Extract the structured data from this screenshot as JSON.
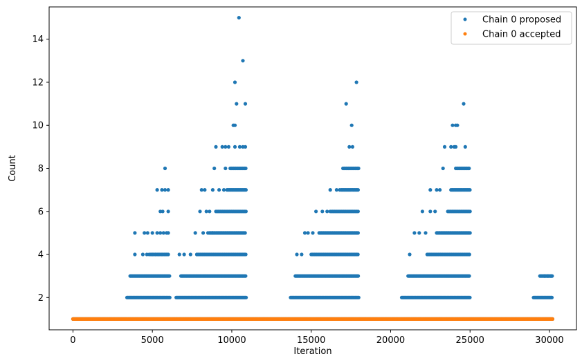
{
  "chart_data": {
    "type": "scatter",
    "xlabel": "Iteration",
    "ylabel": "Count",
    "xlim": [
      -1500,
      31700
    ],
    "ylim": [
      0.5,
      15.5
    ],
    "xticks": [
      0,
      5000,
      10000,
      15000,
      20000,
      25000,
      30000
    ],
    "yticks": [
      2,
      4,
      6,
      8,
      10,
      12,
      14
    ],
    "grid": false,
    "legend_position": "top-right",
    "series": [
      {
        "name": "Chain 0 proposed",
        "color": "#1f77b4",
        "baseline": {
          "y": 1,
          "x_from": 0,
          "x_to": 30200
        },
        "bands": [
          {
            "y": 2,
            "ranges": [
              [
                3400,
                6100
              ],
              [
                6500,
                10900
              ],
              [
                13700,
                18000
              ],
              [
                20700,
                25000
              ],
              [
                29000,
                30200
              ]
            ]
          },
          {
            "y": 3,
            "ranges": [
              [
                3600,
                6100
              ],
              [
                6800,
                10900
              ],
              [
                14000,
                18000
              ],
              [
                21100,
                25000
              ],
              [
                29400,
                30200
              ]
            ]
          }
        ],
        "points": [
          {
            "x": 3900,
            "y": 4
          },
          {
            "x": 4400,
            "y": 4
          },
          {
            "x": 4650,
            "y": 4
          },
          {
            "x": 4800,
            "y": 4
          },
          {
            "x": 5000,
            "y": 4
          },
          {
            "x": 5200,
            "y": 4
          },
          {
            "x": 5400,
            "y": 4
          },
          {
            "x": 5600,
            "y": 4
          },
          {
            "x": 5800,
            "y": 4
          },
          {
            "x": 6000,
            "y": 4
          },
          {
            "x": 3900,
            "y": 5
          },
          {
            "x": 4500,
            "y": 5
          },
          {
            "x": 4700,
            "y": 5
          },
          {
            "x": 5000,
            "y": 5
          },
          {
            "x": 5300,
            "y": 5
          },
          {
            "x": 5500,
            "y": 5
          },
          {
            "x": 5700,
            "y": 5
          },
          {
            "x": 5900,
            "y": 5
          },
          {
            "x": 6000,
            "y": 5
          },
          {
            "x": 5500,
            "y": 6
          },
          {
            "x": 5650,
            "y": 6
          },
          {
            "x": 6000,
            "y": 6
          },
          {
            "x": 5300,
            "y": 7
          },
          {
            "x": 5600,
            "y": 7
          },
          {
            "x": 5800,
            "y": 7
          },
          {
            "x": 6000,
            "y": 7
          },
          {
            "x": 5800,
            "y": 8
          },
          {
            "x": 6700,
            "y": 4
          },
          {
            "x": 7000,
            "y": 4
          },
          {
            "x": 7400,
            "y": 4
          },
          {
            "x": 7800,
            "y": 4
          },
          {
            "x": 7700,
            "y": 5
          },
          {
            "x": 8200,
            "y": 5
          },
          {
            "x": 8500,
            "y": 5
          },
          {
            "x": 8800,
            "y": 5
          },
          {
            "x": 8000,
            "y": 6
          },
          {
            "x": 8400,
            "y": 6
          },
          {
            "x": 8600,
            "y": 6
          },
          {
            "x": 8100,
            "y": 7
          },
          {
            "x": 8300,
            "y": 7
          },
          {
            "x": 8800,
            "y": 7
          },
          {
            "x": 9200,
            "y": 7
          },
          {
            "x": 9500,
            "y": 7
          },
          {
            "x": 8900,
            "y": 8
          },
          {
            "x": 9600,
            "y": 8
          },
          {
            "x": 9000,
            "y": 9
          },
          {
            "x": 9400,
            "y": 9
          },
          {
            "x": 9600,
            "y": 9
          },
          {
            "x": 9800,
            "y": 9
          },
          {
            "x": 10200,
            "y": 9
          },
          {
            "x": 10500,
            "y": 9
          },
          {
            "x": 10700,
            "y": 9
          },
          {
            "x": 10850,
            "y": 9
          },
          {
            "x": 10100,
            "y": 10
          },
          {
            "x": 10200,
            "y": 10
          },
          {
            "x": 10300,
            "y": 11
          },
          {
            "x": 10850,
            "y": 11
          },
          {
            "x": 10200,
            "y": 12
          },
          {
            "x": 10700,
            "y": 13
          },
          {
            "x": 10450,
            "y": 15
          },
          {
            "x": 14100,
            "y": 4
          },
          {
            "x": 14400,
            "y": 4
          },
          {
            "x": 14600,
            "y": 5
          },
          {
            "x": 14800,
            "y": 5
          },
          {
            "x": 15100,
            "y": 5
          },
          {
            "x": 15300,
            "y": 6
          },
          {
            "x": 15700,
            "y": 6
          },
          {
            "x": 16000,
            "y": 6
          },
          {
            "x": 16200,
            "y": 7
          },
          {
            "x": 16600,
            "y": 7
          },
          {
            "x": 16800,
            "y": 7
          },
          {
            "x": 17200,
            "y": 11
          },
          {
            "x": 17400,
            "y": 9
          },
          {
            "x": 17600,
            "y": 9
          },
          {
            "x": 17550,
            "y": 10
          },
          {
            "x": 17850,
            "y": 12
          },
          {
            "x": 21200,
            "y": 4
          },
          {
            "x": 21500,
            "y": 5
          },
          {
            "x": 21800,
            "y": 5
          },
          {
            "x": 22200,
            "y": 5
          },
          {
            "x": 22000,
            "y": 6
          },
          {
            "x": 22500,
            "y": 6
          },
          {
            "x": 22800,
            "y": 6
          },
          {
            "x": 22500,
            "y": 7
          },
          {
            "x": 22900,
            "y": 7
          },
          {
            "x": 23100,
            "y": 7
          },
          {
            "x": 23300,
            "y": 8
          },
          {
            "x": 23400,
            "y": 9
          },
          {
            "x": 23800,
            "y": 9
          },
          {
            "x": 24000,
            "y": 9
          },
          {
            "x": 24100,
            "y": 9
          },
          {
            "x": 24700,
            "y": 9
          },
          {
            "x": 23900,
            "y": 10
          },
          {
            "x": 24100,
            "y": 10
          },
          {
            "x": 24200,
            "y": 10
          },
          {
            "x": 24600,
            "y": 11
          },
          {
            "x": 29700,
            "y": 3
          },
          {
            "x": 29900,
            "y": 3
          },
          {
            "x": 30100,
            "y": 3
          }
        ],
        "dense_ranges": [
          {
            "y": 4,
            "ranges": [
              [
                4900,
                6000
              ],
              [
                7800,
                10900
              ],
              [
                15000,
                18000
              ],
              [
                22300,
                25000
              ]
            ]
          },
          {
            "y": 5,
            "ranges": [
              [
                8600,
                10900
              ],
              [
                15500,
                18000
              ],
              [
                22900,
                25000
              ]
            ]
          },
          {
            "y": 6,
            "ranges": [
              [
                9000,
                10900
              ],
              [
                16200,
                18000
              ],
              [
                23600,
                25000
              ]
            ]
          },
          {
            "y": 7,
            "ranges": [
              [
                9700,
                10900
              ],
              [
                16900,
                18000
              ],
              [
                23800,
                25000
              ]
            ]
          },
          {
            "y": 8,
            "ranges": [
              [
                9900,
                10900
              ],
              [
                17000,
                18000
              ],
              [
                24100,
                25000
              ]
            ]
          }
        ]
      },
      {
        "name": "Chain 0 accepted",
        "color": "#ff7f0e",
        "baseline": {
          "y": 1,
          "x_from": 0,
          "x_to": 30200
        }
      }
    ]
  }
}
